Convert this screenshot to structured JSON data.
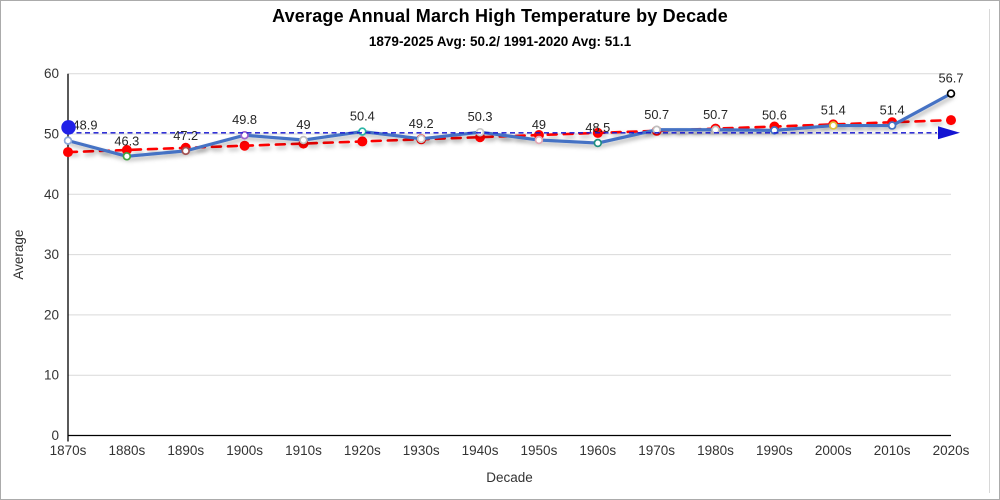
{
  "chart_data": {
    "type": "line",
    "title": "Average Annual March High Temperature by Decade",
    "subtitle": "1879-2025 Avg: 50.2/ 1991-2020 Avg: 51.1",
    "xlabel": "Decade",
    "ylabel": "Average",
    "ylim": [
      0,
      60
    ],
    "ytick_interval": 10,
    "grid": true,
    "legend": false,
    "categories": [
      "1870s",
      "1880s",
      "1890s",
      "1900s",
      "1910s",
      "1920s",
      "1930s",
      "1940s",
      "1950s",
      "1960s",
      "1970s",
      "1980s",
      "1990s",
      "2000s",
      "2010s",
      "2020s"
    ],
    "series": [
      {
        "name": "decade-average",
        "kind": "line-with-markers",
        "line_color": "#4472C4",
        "line_style": "solid",
        "values": [
          48.9,
          46.3,
          47.2,
          49.8,
          49,
          50.4,
          49.2,
          50.3,
          49,
          48.5,
          50.7,
          50.7,
          50.6,
          51.4,
          51.4,
          56.7
        ],
        "labels": [
          "48.9",
          "46.3",
          "47.2",
          "49.8",
          "49",
          "50.4",
          "49.2",
          "50.3",
          "49",
          "48.5",
          "50.7",
          "50.7",
          "50.6",
          "51.4",
          "51.4",
          "56.7"
        ],
        "marker_fill": "#FFFFFF",
        "marker_colors": [
          "#8FAADC",
          "#3FA33F",
          "#A35050",
          "#9E63CE",
          "#BFBFBF",
          "#2AB5A5",
          "#C9C9C9",
          "#C9C9C9",
          "#E3A6B4",
          "#1F8F80",
          "#BFBFBF",
          "#BFBFBF",
          "#4472C4",
          "#E0C23C",
          "#4472C4",
          "#000000"
        ]
      },
      {
        "name": "trend-line",
        "kind": "dashed-line-with-dots",
        "line_color": "#FF0000",
        "line_style": "dashed",
        "values": [
          47.0,
          47.35,
          47.71,
          48.06,
          48.41,
          48.77,
          49.12,
          49.47,
          49.83,
          50.18,
          50.53,
          50.89,
          51.24,
          51.59,
          51.95,
          52.3
        ]
      },
      {
        "name": "long-term-average-reference-line",
        "kind": "horizontal-reference-arrow",
        "line_color": "#1414D2",
        "line_style": "dashed",
        "value": 50.2
      },
      {
        "name": "1991-2020-average-point",
        "kind": "single-point",
        "color": "#2121E8",
        "value": 51.1
      }
    ],
    "label_color": "#262626",
    "tick_color": "#333333",
    "grid_color": "#D9D9D9",
    "axis_color": "#000000"
  }
}
